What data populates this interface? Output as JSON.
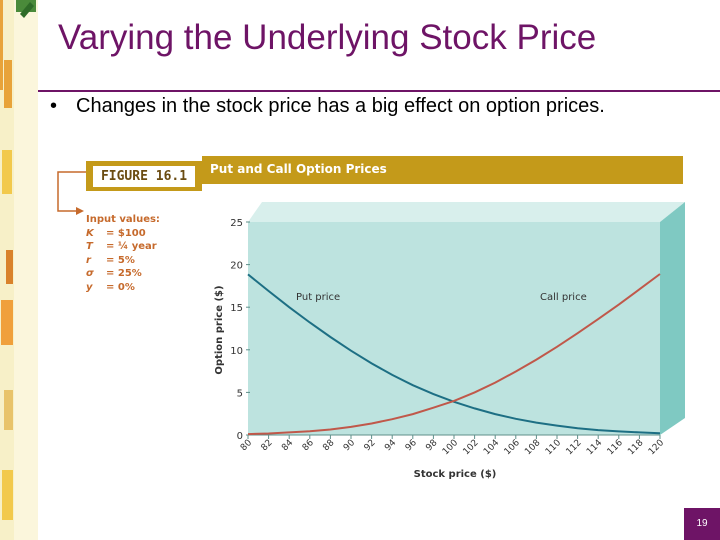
{
  "slide": {
    "title": "Varying the Underlying Stock Price",
    "bullet": "Changes in the stock price has a big effect on option prices.",
    "page_number": "19"
  },
  "figure": {
    "label": "FIGURE 16.1",
    "caption": "Put and Call Option Prices",
    "inputs_heading": "Input values:",
    "inputs": [
      {
        "sym": "K",
        "val": "$100"
      },
      {
        "sym": "T",
        "val": "¼ year"
      },
      {
        "sym": "r",
        "val": "5%"
      },
      {
        "sym": "σ",
        "val": "25%"
      },
      {
        "sym": "y",
        "val": "0%"
      }
    ]
  },
  "colors": {
    "title": "#6e1466",
    "fig_bar": "#c49a1a",
    "plot_face": "#bde3df",
    "plot_side": "#7fc9c2",
    "put_line": "#1d6f84",
    "call_line": "#c0584a",
    "input_text": "#c66a2c"
  },
  "chart_data": {
    "type": "line",
    "title": "Put and Call Option Prices",
    "xlabel": "Stock price ($)",
    "ylabel": "Option price ($)",
    "x": [
      80,
      82,
      84,
      86,
      88,
      90,
      92,
      94,
      96,
      98,
      100,
      102,
      104,
      106,
      108,
      110,
      112,
      114,
      116,
      118,
      120
    ],
    "xlim": [
      80,
      120
    ],
    "ylim": [
      0,
      25
    ],
    "yticks": [
      0,
      5,
      10,
      15,
      20,
      25
    ],
    "series": [
      {
        "name": "Put price",
        "values": [
          18.85,
          16.9,
          15.0,
          13.2,
          11.5,
          9.9,
          8.4,
          7.05,
          5.85,
          4.8,
          3.9,
          3.12,
          2.45,
          1.9,
          1.45,
          1.1,
          0.8,
          0.58,
          0.42,
          0.3,
          0.21
        ]
      },
      {
        "name": "Call price",
        "values": [
          0.1,
          0.18,
          0.3,
          0.45,
          0.65,
          0.95,
          1.35,
          1.85,
          2.45,
          3.2,
          4.0,
          5.0,
          6.15,
          7.45,
          8.85,
          10.35,
          11.95,
          13.6,
          15.3,
          17.1,
          18.9
        ]
      }
    ],
    "annotations": [
      "Put price",
      "Call price"
    ],
    "grid": false,
    "legend": "none"
  }
}
